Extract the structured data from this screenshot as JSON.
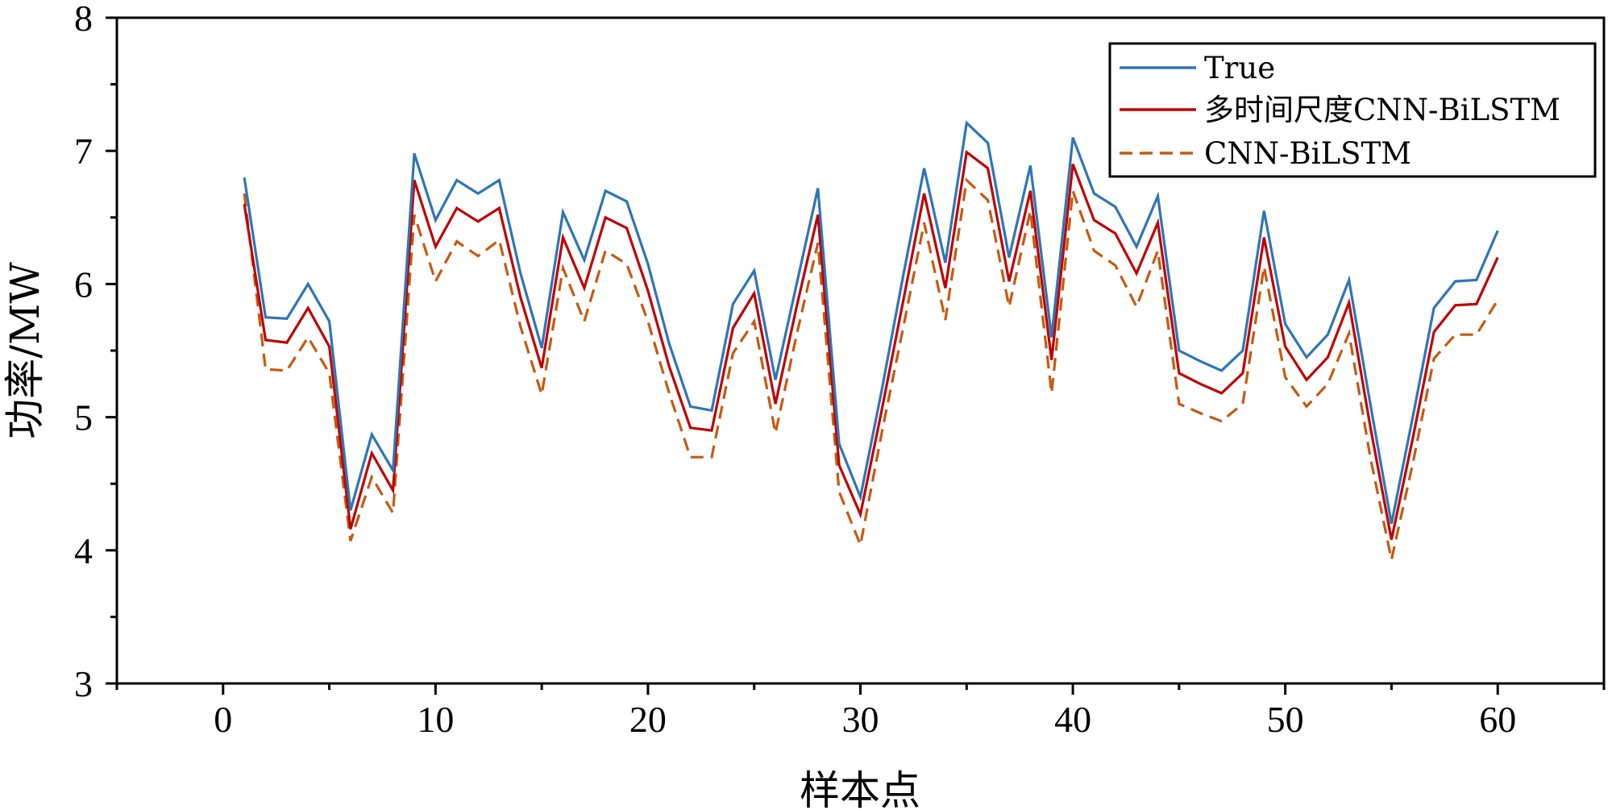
{
  "chart_data": {
    "type": "line",
    "title": "",
    "xlabel": "样本点",
    "ylabel": "功率/MW",
    "xlim": [
      -5,
      65
    ],
    "ylim": [
      3,
      8
    ],
    "xticks": [
      0,
      10,
      20,
      30,
      40,
      50,
      60
    ],
    "yticks": [
      3,
      4,
      5,
      6,
      7,
      8
    ],
    "grid": false,
    "legend_position": "top-right",
    "x": [
      1,
      2,
      3,
      4,
      5,
      6,
      7,
      8,
      9,
      10,
      11,
      12,
      13,
      14,
      15,
      16,
      17,
      18,
      19,
      20,
      21,
      22,
      23,
      24,
      25,
      26,
      27,
      28,
      29,
      30,
      31,
      32,
      33,
      34,
      35,
      36,
      37,
      38,
      39,
      40,
      41,
      42,
      43,
      44,
      45,
      46,
      47,
      48,
      49,
      50,
      51,
      52,
      53,
      54,
      55,
      56,
      57,
      58,
      59,
      60
    ],
    "series": [
      {
        "name": "True",
        "color": "#2e75b6",
        "style": "solid",
        "values": [
          6.8,
          5.75,
          5.74,
          6.0,
          5.72,
          4.3,
          4.87,
          4.6,
          6.98,
          6.48,
          6.78,
          6.68,
          6.78,
          6.08,
          5.52,
          6.54,
          6.18,
          6.7,
          6.62,
          6.15,
          5.55,
          5.08,
          5.05,
          5.85,
          6.1,
          5.28,
          6.0,
          6.72,
          4.8,
          4.4,
          5.2,
          6.05,
          6.87,
          6.16,
          7.21,
          7.06,
          6.2,
          6.89,
          5.6,
          7.1,
          6.68,
          6.58,
          6.28,
          6.66,
          5.5,
          5.42,
          5.35,
          5.5,
          6.55,
          5.7,
          5.45,
          5.62,
          6.03,
          5.1,
          4.2,
          5.0,
          5.82,
          6.02,
          6.03,
          6.4
        ]
      },
      {
        "name": "多时间尺度CNN-BiLSTM",
        "color": "#c00000",
        "style": "solid",
        "values": [
          6.6,
          5.58,
          5.56,
          5.82,
          5.53,
          4.16,
          4.73,
          4.45,
          6.78,
          6.28,
          6.57,
          6.47,
          6.57,
          5.9,
          5.37,
          6.35,
          5.97,
          6.5,
          6.42,
          5.95,
          5.38,
          4.92,
          4.9,
          5.67,
          5.93,
          5.1,
          5.83,
          6.52,
          4.64,
          4.27,
          5.05,
          5.86,
          6.68,
          5.97,
          6.99,
          6.87,
          6.02,
          6.7,
          5.43,
          6.9,
          6.48,
          6.38,
          6.08,
          6.46,
          5.33,
          5.25,
          5.18,
          5.33,
          6.35,
          5.53,
          5.28,
          5.45,
          5.86,
          4.93,
          4.08,
          4.84,
          5.64,
          5.84,
          5.85,
          6.2
        ]
      },
      {
        "name": "CNN-BiLSTM",
        "color": "#c55a11",
        "style": "dashed",
        "values": [
          6.68,
          5.36,
          5.35,
          5.6,
          5.33,
          4.07,
          4.55,
          4.28,
          6.52,
          6.02,
          6.32,
          6.21,
          6.33,
          5.68,
          5.17,
          6.12,
          5.72,
          6.25,
          6.15,
          5.72,
          5.18,
          4.7,
          4.7,
          5.48,
          5.72,
          4.88,
          5.62,
          6.31,
          4.44,
          4.04,
          4.88,
          5.66,
          6.46,
          5.73,
          6.78,
          6.63,
          5.83,
          6.55,
          5.18,
          6.7,
          6.25,
          6.14,
          5.83,
          6.25,
          5.1,
          5.03,
          4.97,
          5.1,
          6.13,
          5.3,
          5.08,
          5.25,
          5.63,
          4.7,
          3.93,
          4.65,
          5.44,
          5.62,
          5.62,
          5.88
        ]
      }
    ]
  }
}
